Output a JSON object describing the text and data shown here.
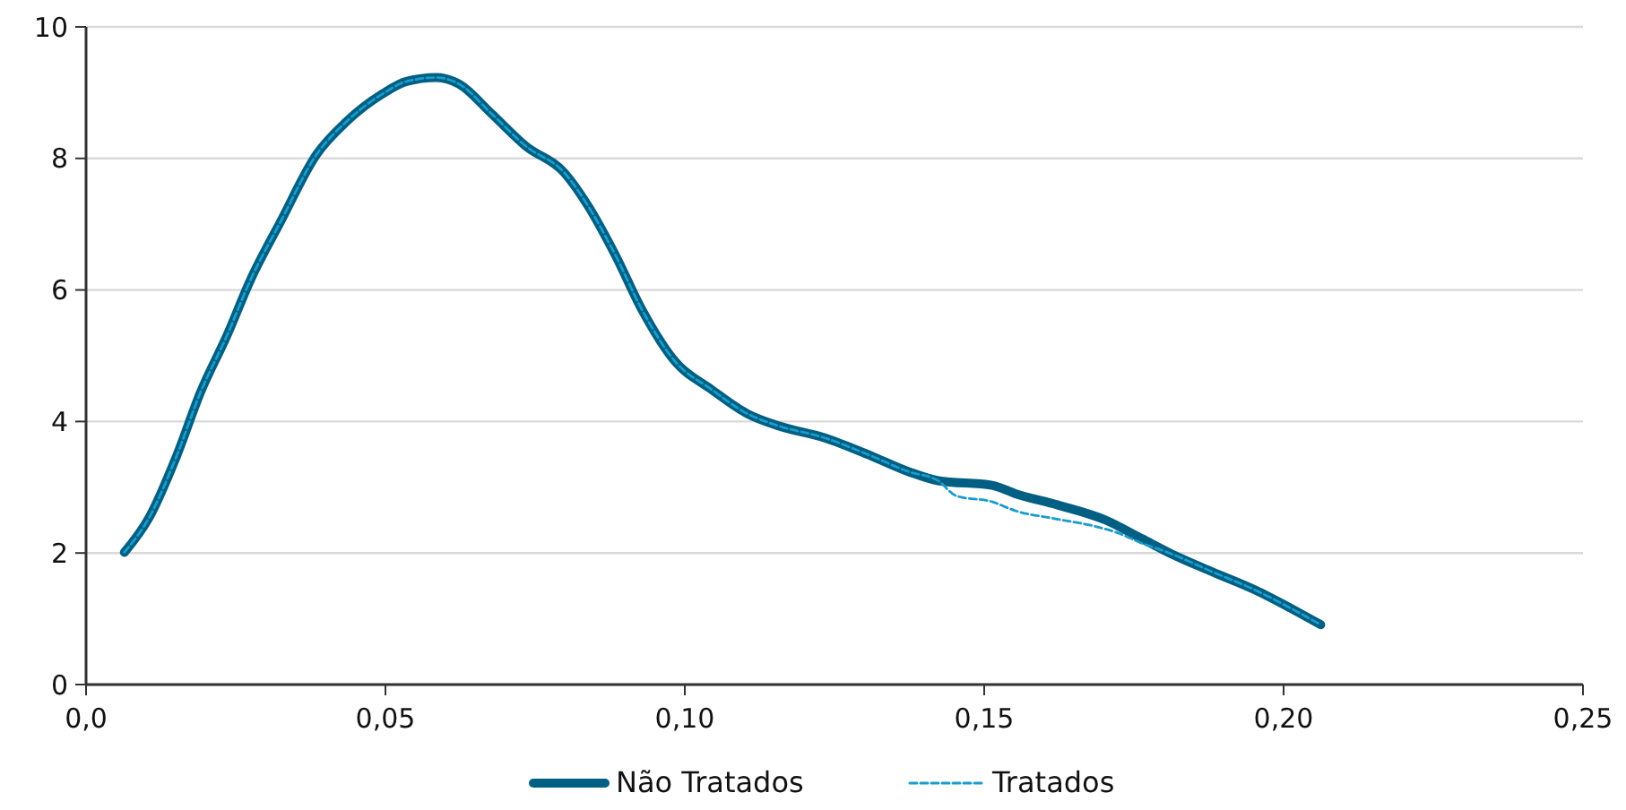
{
  "chart_data": {
    "type": "line",
    "xlim": [
      0,
      0.25
    ],
    "ylim": [
      0,
      10
    ],
    "xticks": [
      {
        "value": 0,
        "label": "0,0"
      },
      {
        "value": 0.05,
        "label": "0,05"
      },
      {
        "value": 0.1,
        "label": "0,10"
      },
      {
        "value": 0.15,
        "label": "0,15"
      },
      {
        "value": 0.2,
        "label": "0,20"
      },
      {
        "value": 0.25,
        "label": "0,25"
      }
    ],
    "yticks": [
      0,
      2,
      4,
      6,
      8,
      10
    ],
    "grid": "y",
    "legend": "bottom",
    "series": [
      {
        "name": "Não Tratados",
        "color": "#005f82",
        "line_style": "solid",
        "x": [
          0.0064,
          0.0106,
          0.0151,
          0.0191,
          0.0236,
          0.0275,
          0.0325,
          0.0385,
          0.0435,
          0.0495,
          0.0535,
          0.0585,
          0.0625,
          0.0675,
          0.0734,
          0.0799,
          0.0839,
          0.0884,
          0.0929,
          0.0984,
          0.1044,
          0.1104,
          0.1154,
          0.1234,
          0.1313,
          0.1373,
          0.1423,
          0.1513,
          0.1553,
          0.1623,
          0.1703,
          0.1763,
          0.1812,
          0.1882,
          0.1952,
          0.2012,
          0.2062
        ],
        "values": [
          2.01,
          2.55,
          3.47,
          4.44,
          5.32,
          6.16,
          7.04,
          8.06,
          8.56,
          8.98,
          9.17,
          9.23,
          9.12,
          8.7,
          8.19,
          7.78,
          7.27,
          6.53,
          5.69,
          4.91,
          4.49,
          4.12,
          3.94,
          3.75,
          3.47,
          3.24,
          3.1,
          3.03,
          2.9,
          2.73,
          2.5,
          2.22,
          1.99,
          1.71,
          1.44,
          1.16,
          0.91
        ]
      },
      {
        "name": "Tratados",
        "color": "#1a9ccc",
        "line_style": "dashed",
        "x": [
          0.0064,
          0.0106,
          0.0151,
          0.0191,
          0.0236,
          0.0275,
          0.0325,
          0.0385,
          0.0435,
          0.0495,
          0.0535,
          0.0585,
          0.0625,
          0.0675,
          0.0734,
          0.0799,
          0.0839,
          0.0884,
          0.0929,
          0.0984,
          0.1044,
          0.1104,
          0.1154,
          0.1234,
          0.1313,
          0.1373,
          0.1423,
          0.1453,
          0.1513,
          0.1553,
          0.1613,
          0.1683,
          0.1722,
          0.1763,
          0.1812,
          0.1882,
          0.1952,
          0.2012,
          0.2062
        ],
        "values": [
          2.01,
          2.55,
          3.47,
          4.44,
          5.32,
          6.16,
          7.04,
          8.06,
          8.56,
          8.98,
          9.17,
          9.23,
          9.12,
          8.7,
          8.19,
          7.78,
          7.27,
          6.53,
          5.69,
          4.91,
          4.49,
          4.12,
          3.94,
          3.75,
          3.47,
          3.24,
          3.1,
          2.87,
          2.78,
          2.64,
          2.53,
          2.41,
          2.31,
          2.15,
          1.99,
          1.71,
          1.44,
          1.16,
          0.91
        ]
      }
    ]
  }
}
